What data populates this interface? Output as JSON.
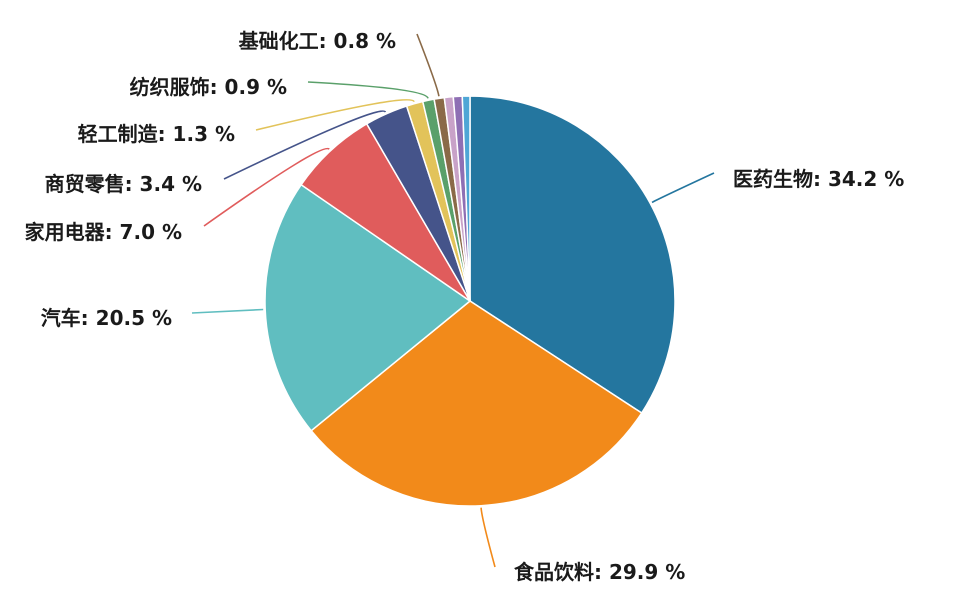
{
  "chart_data": {
    "type": "pie",
    "title": "",
    "start": "12 o'clock",
    "direction": "clockwise",
    "slices": [
      {
        "label": "医药生物",
        "value": 34.2,
        "text": "医药生物: 34.2 %",
        "color": "#24769f"
      },
      {
        "label": "食品饮料",
        "value": 29.9,
        "text": "食品饮料: 29.9 %",
        "color": "#f28a1a"
      },
      {
        "label": "汽车",
        "value": 20.5,
        "text": "汽车: 20.5 %",
        "color": "#60bec0"
      },
      {
        "label": "家用电器",
        "value": 7.0,
        "text": "家用电器: 7.0 %",
        "color": "#e05c5c"
      },
      {
        "label": "商贸零售",
        "value": 3.4,
        "text": "商贸零售: 3.4 %",
        "color": "#45548a"
      },
      {
        "label": "轻工制造",
        "value": 1.3,
        "text": "轻工制造: 1.3 %",
        "color": "#e2c35a"
      },
      {
        "label": "纺织服饰",
        "value": 0.9,
        "text": "纺织服饰: 0.9 %",
        "color": "#5aa06a"
      },
      {
        "label": "基础化工",
        "value": 0.8,
        "text": "基础化工: 0.8 %",
        "color": "#8a6a48"
      },
      {
        "value": 0.7,
        "color": "#c8a2c8"
      },
      {
        "value": 0.7,
        "color": "#8e6fb4"
      },
      {
        "value": 0.6,
        "color": "#4ea6d6"
      }
    ]
  }
}
